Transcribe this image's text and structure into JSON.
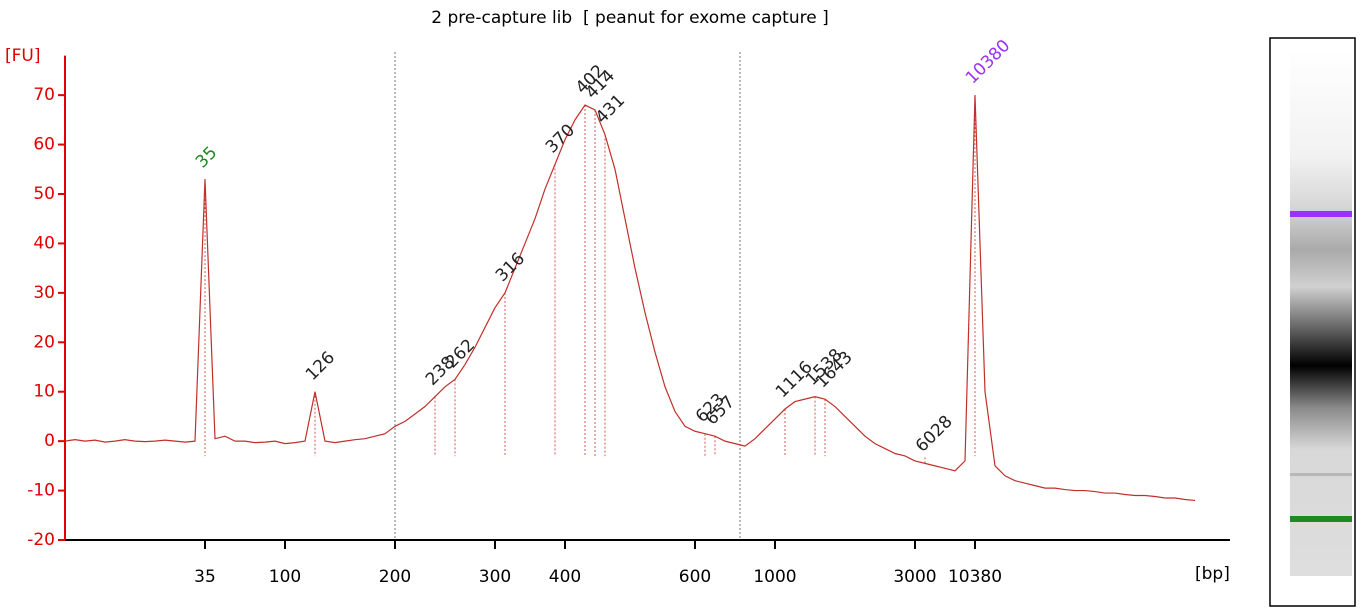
{
  "chart_data": {
    "type": "line",
    "title": "2 pre-capture lib  [ peanut for exome capture ]",
    "y_label": "[FU]",
    "x_label": "[bp]",
    "categories": [
      null,
      null,
      null,
      null,
      null,
      null,
      null,
      null,
      null,
      null,
      null,
      null,
      null,
      null,
      "35",
      null,
      null,
      null,
      null,
      null,
      null,
      null,
      "100",
      null,
      null,
      null,
      null,
      null,
      null,
      null,
      null,
      null,
      null,
      "200",
      null,
      null,
      null,
      null,
      null,
      null,
      null,
      null,
      null,
      "300",
      null,
      null,
      null,
      null,
      null,
      null,
      "400",
      null,
      null,
      null,
      null,
      null,
      null,
      null,
      null,
      null,
      null,
      null,
      null,
      "600",
      null,
      null,
      null,
      null,
      null,
      null,
      null,
      "1000",
      null,
      null,
      null,
      null,
      null,
      null,
      null,
      null,
      null,
      null,
      null,
      null,
      null,
      "3000",
      null,
      null,
      null,
      null,
      null,
      "10380",
      null,
      null,
      null,
      null,
      null,
      null,
      null,
      null,
      null,
      null,
      null,
      null,
      null,
      null,
      null,
      null,
      null,
      null,
      null,
      null,
      null,
      null
    ],
    "values": [
      0,
      0.3,
      0,
      0.2,
      -0.2,
      0,
      0.3,
      0,
      -0.1,
      0,
      0.2,
      0,
      -0.2,
      0,
      53,
      0.5,
      1,
      0,
      0,
      -0.3,
      -0.2,
      0,
      -0.5,
      -0.3,
      0,
      10,
      0,
      -0.3,
      0,
      0.3,
      0.5,
      1,
      1.5,
      3,
      4,
      5.5,
      7,
      9,
      11,
      12.5,
      15.5,
      19,
      23,
      27,
      30,
      35,
      40,
      45,
      51,
      56,
      61,
      65,
      68,
      67,
      62,
      55,
      45,
      35,
      26,
      18,
      11,
      6,
      3,
      2,
      1.5,
      1,
      0,
      -0.5,
      -1,
      0.5,
      2.5,
      4.5,
      6.5,
      8,
      8.5,
      9,
      8.5,
      7,
      5,
      3,
      1,
      -0.5,
      -1.5,
      -2.5,
      -3,
      -4,
      -4.5,
      -5,
      -5.5,
      -6,
      -4,
      70,
      10,
      -5,
      -7,
      -8,
      -8.5,
      -9,
      -9.5,
      -9.5,
      -9.8,
      -10,
      -10,
      -10.2,
      -10.5,
      -10.5,
      -10.8,
      -11,
      -11,
      -11.2,
      -11.5,
      -11.5,
      -11.8,
      -12
    ],
    "color": "#c0302a",
    "axis_color": "#e00000",
    "ylim": [
      -20,
      78
    ],
    "yticks": [
      -20,
      -10,
      0,
      10,
      20,
      30,
      40,
      50,
      60,
      70
    ],
    "peaks": [
      {
        "label": "35",
        "index": 14,
        "value": 53,
        "color": "#1f8a1f"
      },
      {
        "label": "126",
        "index": 25,
        "value": 10,
        "color": "#222222"
      },
      {
        "label": "238",
        "index": 37,
        "value": 9,
        "color": "#222222"
      },
      {
        "label": "262",
        "index": 39,
        "value": 12.5,
        "color": "#222222"
      },
      {
        "label": "316",
        "index": 44,
        "value": 30,
        "color": "#222222"
      },
      {
        "label": "370",
        "index": 49,
        "value": 56,
        "color": "#222222"
      },
      {
        "label": "402",
        "index": 52,
        "value": 68,
        "color": "#222222"
      },
      {
        "label": "414",
        "index": 53,
        "value": 67,
        "color": "#222222"
      },
      {
        "label": "431",
        "index": 54,
        "value": 62,
        "color": "#222222"
      },
      {
        "label": "623",
        "index": 64,
        "value": 1.5,
        "color": "#222222"
      },
      {
        "label": "657",
        "index": 65,
        "value": 1,
        "color": "#222222"
      },
      {
        "label": "1116",
        "index": 72,
        "value": 6.5,
        "color": "#222222"
      },
      {
        "label": "1538",
        "index": 75,
        "value": 9,
        "color": "#222222"
      },
      {
        "label": "1643",
        "index": 76,
        "value": 8.5,
        "color": "#222222"
      },
      {
        "label": "6028",
        "index": 86,
        "value": -4.5,
        "color": "#222222"
      },
      {
        "label": "10380",
        "index": 91,
        "value": 70,
        "color": "#9b30ff"
      }
    ]
  }
}
